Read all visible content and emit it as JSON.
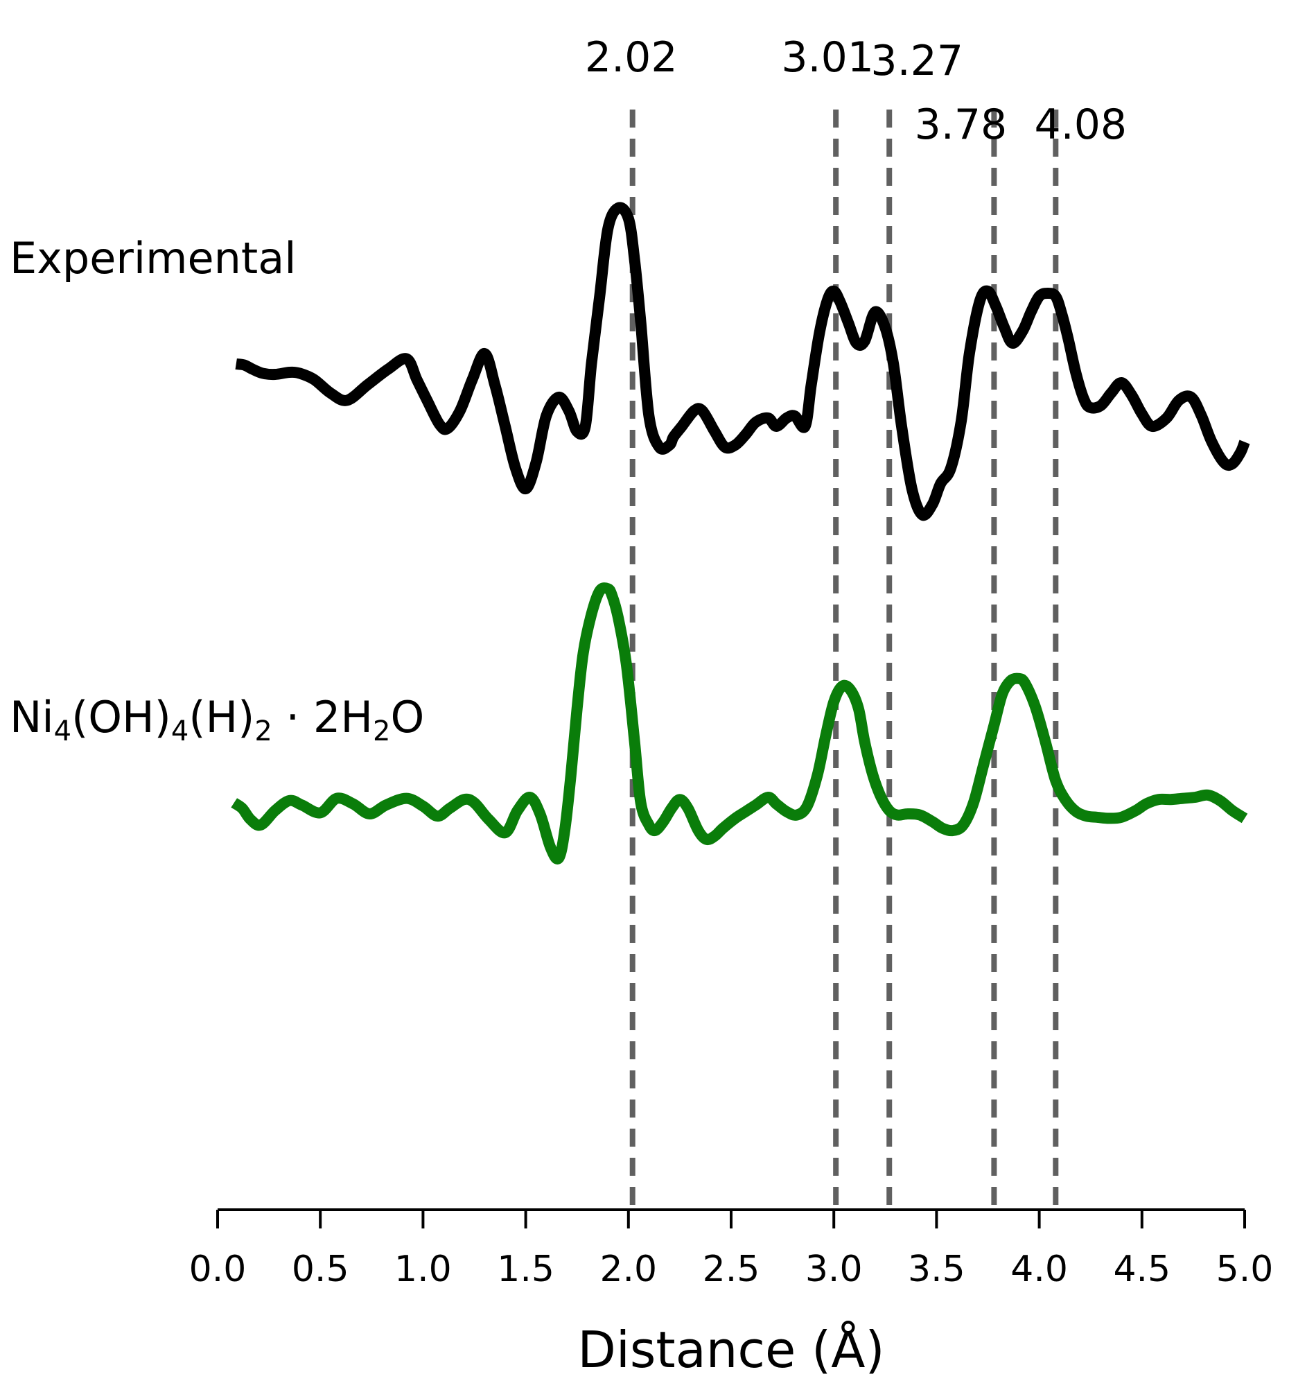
{
  "chart_data": {
    "type": "line",
    "title": "",
    "xlabel": "Distance (Å)",
    "ylabel": "",
    "xlim": [
      0.0,
      5.0
    ],
    "x_ticks": [
      "0.0",
      "0.5",
      "1.0",
      "1.5",
      "2.0",
      "2.5",
      "3.0",
      "3.5",
      "4.0",
      "4.5",
      "5.0"
    ],
    "grid": false,
    "reference_lines": [
      {
        "x": 2.02,
        "label": "2.02"
      },
      {
        "x": 3.01,
        "label": "3.01"
      },
      {
        "x": 3.27,
        "label": "3.27"
      },
      {
        "x": 3.78,
        "label": "3.78"
      },
      {
        "x": 4.08,
        "label": "4.08"
      }
    ],
    "reference_line_color": "#606060",
    "series": [
      {
        "name": "Experimental",
        "color": "#000000",
        "x": [
          0.09,
          0.13,
          0.17,
          0.22,
          0.28,
          0.35,
          0.4,
          0.47,
          0.55,
          0.63,
          0.73,
          0.83,
          0.92,
          0.97,
          1.02,
          1.08,
          1.12,
          1.18,
          1.24,
          1.3,
          1.35,
          1.4,
          1.45,
          1.5,
          1.55,
          1.6,
          1.66,
          1.71,
          1.75,
          1.79,
          1.82,
          1.86,
          1.9,
          1.95,
          2.0,
          2.03,
          2.06,
          2.1,
          2.15,
          2.2,
          2.22,
          2.26,
          2.32,
          2.36,
          2.42,
          2.47,
          2.52,
          2.57,
          2.62,
          2.68,
          2.72,
          2.77,
          2.81,
          2.86,
          2.89,
          2.93,
          2.97,
          3.0,
          3.03,
          3.07,
          3.11,
          3.15,
          3.2,
          3.25,
          3.29,
          3.33,
          3.38,
          3.43,
          3.48,
          3.52,
          3.57,
          3.62,
          3.66,
          3.71,
          3.75,
          3.79,
          3.83,
          3.87,
          3.92,
          3.96,
          4.0,
          4.04,
          4.08,
          4.11,
          4.14,
          4.18,
          4.22,
          4.25,
          4.3,
          4.35,
          4.4,
          4.45,
          4.5,
          4.55,
          4.62,
          4.68,
          4.74,
          4.79,
          4.84,
          4.9,
          4.94,
          4.98,
          5.0
        ],
        "y": [
          0.4,
          0.39,
          0.35,
          0.31,
          0.3,
          0.32,
          0.31,
          0.25,
          0.12,
          0.05,
          0.2,
          0.35,
          0.45,
          0.25,
          0.05,
          -0.18,
          -0.22,
          -0.05,
          0.25,
          0.5,
          0.2,
          -0.2,
          -0.6,
          -0.8,
          -0.55,
          -0.1,
          0.08,
          -0.05,
          -0.25,
          -0.2,
          0.4,
          1.05,
          1.7,
          1.9,
          1.8,
          1.4,
          0.8,
          -0.1,
          -0.4,
          -0.38,
          -0.3,
          -0.2,
          -0.05,
          -0.05,
          -0.25,
          -0.4,
          -0.38,
          -0.28,
          -0.16,
          -0.12,
          -0.2,
          -0.12,
          -0.1,
          -0.2,
          0.2,
          0.7,
          1.02,
          1.1,
          1.0,
          0.8,
          0.6,
          0.62,
          0.9,
          0.75,
          0.4,
          -0.2,
          -0.8,
          -1.05,
          -0.95,
          -0.75,
          -0.6,
          -0.15,
          0.5,
          1.0,
          1.1,
          0.95,
          0.75,
          0.6,
          0.72,
          0.9,
          1.05,
          1.08,
          1.05,
          0.88,
          0.65,
          0.3,
          0.05,
          -0.02,
          0.0,
          0.12,
          0.22,
          0.1,
          -0.08,
          -0.2,
          -0.12,
          0.05,
          0.08,
          -0.1,
          -0.35,
          -0.55,
          -0.56,
          -0.45,
          -0.35
        ]
      },
      {
        "name": "Ni4(OH)4(H)2 · 2H2O",
        "color": "#0a7d0a",
        "x": [
          0.08,
          0.12,
          0.16,
          0.21,
          0.28,
          0.35,
          0.41,
          0.5,
          0.58,
          0.66,
          0.74,
          0.82,
          0.92,
          1.0,
          1.07,
          1.13,
          1.2,
          1.25,
          1.32,
          1.4,
          1.46,
          1.52,
          1.57,
          1.62,
          1.66,
          1.69,
          1.72,
          1.75,
          1.78,
          1.82,
          1.86,
          1.9,
          1.92,
          1.95,
          1.99,
          2.03,
          2.06,
          2.1,
          2.13,
          2.17,
          2.21,
          2.25,
          2.29,
          2.34,
          2.38,
          2.42,
          2.46,
          2.52,
          2.57,
          2.62,
          2.68,
          2.72,
          2.77,
          2.82,
          2.87,
          2.92,
          2.96,
          3.0,
          3.04,
          3.08,
          3.12,
          3.15,
          3.19,
          3.23,
          3.27,
          3.31,
          3.36,
          3.42,
          3.48,
          3.53,
          3.58,
          3.63,
          3.68,
          3.73,
          3.78,
          3.82,
          3.86,
          3.9,
          3.93,
          3.98,
          4.03,
          4.08,
          4.13,
          4.18,
          4.23,
          4.28,
          4.34,
          4.4,
          4.47,
          4.52,
          4.58,
          4.64,
          4.7,
          4.76,
          4.82,
          4.88,
          4.94,
          5.0
        ],
        "y": [
          -0.05,
          -0.1,
          -0.2,
          -0.25,
          -0.12,
          -0.03,
          -0.07,
          -0.14,
          -0.01,
          -0.06,
          -0.15,
          -0.07,
          -0.01,
          -0.08,
          -0.17,
          -0.1,
          -0.02,
          -0.05,
          -0.2,
          -0.32,
          -0.12,
          0.0,
          -0.15,
          -0.45,
          -0.55,
          -0.3,
          0.2,
          0.8,
          1.3,
          1.65,
          1.86,
          1.88,
          1.82,
          1.62,
          1.2,
          0.5,
          -0.05,
          -0.25,
          -0.3,
          -0.22,
          -0.1,
          -0.02,
          -0.1,
          -0.3,
          -0.38,
          -0.35,
          -0.28,
          -0.19,
          -0.13,
          -0.07,
          0.0,
          -0.06,
          -0.13,
          -0.16,
          -0.08,
          0.2,
          0.55,
          0.86,
          1.0,
          0.97,
          0.8,
          0.5,
          0.2,
          0.0,
          -0.12,
          -0.16,
          -0.15,
          -0.16,
          -0.22,
          -0.28,
          -0.3,
          -0.25,
          -0.05,
          0.3,
          0.65,
          0.93,
          1.05,
          1.07,
          1.03,
          0.82,
          0.5,
          0.15,
          -0.03,
          -0.13,
          -0.17,
          -0.18,
          -0.19,
          -0.18,
          -0.12,
          -0.06,
          -0.02,
          -0.02,
          -0.01,
          0.0,
          0.02,
          -0.03,
          -0.12,
          -0.19
        ]
      }
    ]
  }
}
